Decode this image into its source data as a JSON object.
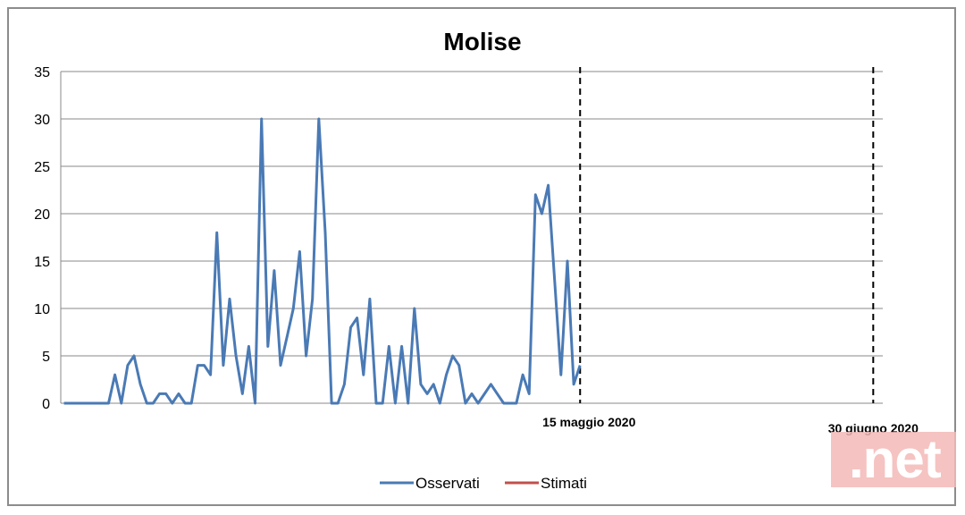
{
  "chart_data": {
    "type": "line",
    "title": "Molise",
    "xlabel": "",
    "ylabel": "",
    "ylim": [
      0,
      35
    ],
    "yticks": [
      "0",
      "5",
      "10",
      "15",
      "20",
      "25",
      "30",
      "35"
    ],
    "grid": true,
    "legend_position": "bottom",
    "x_total_days": 129,
    "series": [
      {
        "name": "Osservati",
        "color": "#4a7ab5",
        "values": [
          0,
          0,
          0,
          0,
          0,
          0,
          0,
          0,
          3,
          0,
          4,
          5,
          2,
          0,
          0,
          1,
          1,
          0,
          1,
          0,
          0,
          4,
          4,
          3,
          18,
          4,
          11,
          5,
          1,
          6,
          0,
          30,
          6,
          14,
          4,
          7,
          10,
          16,
          5,
          11,
          30,
          18,
          0,
          0,
          2,
          8,
          9,
          3,
          11,
          0,
          0,
          6,
          0,
          6,
          0,
          10,
          2,
          1,
          2,
          0,
          3,
          5,
          4,
          0,
          1,
          0,
          1,
          2,
          1,
          0,
          0,
          0,
          3,
          1,
          22,
          20,
          23,
          13,
          3,
          15,
          2,
          4
        ]
      },
      {
        "name": "Stimati",
        "color": "#c0504d",
        "values": []
      }
    ],
    "markers": [
      {
        "label": "15 maggio 2020",
        "day": 81
      },
      {
        "label": "30 giugno 2020",
        "day": 127
      }
    ]
  },
  "watermark": ".net"
}
